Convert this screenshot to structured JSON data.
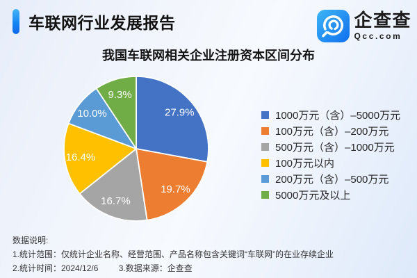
{
  "header": {
    "title": "车联网行业发展报告"
  },
  "brand": {
    "name": "企查查",
    "domain": "Qcc.com",
    "logo_icon": "qcc-magnifier-c-icon",
    "logo_gradient_top": "#3db5f7",
    "logo_gradient_bottom": "#0f6fee"
  },
  "chart_data": {
    "type": "pie",
    "title": "我国车联网相关企业注册资本区间分布",
    "unit": "%",
    "start_angle_deg": 0,
    "direction": "clockwise",
    "legend_position": "right",
    "label_format": "one-decimal-percent",
    "slices": [
      {
        "label": "1000万元（含）–5000万元",
        "value": 27.9,
        "color": "#4472c4"
      },
      {
        "label": "100万元（含）–200万元",
        "value": 19.7,
        "color": "#ed7d31"
      },
      {
        "label": "500万元（含）–1000万元",
        "value": 16.7,
        "color": "#a5a5a5"
      },
      {
        "label": "100万元以内",
        "value": 16.4,
        "color": "#ffc000"
      },
      {
        "label": "200万元（含）–500万元",
        "value": 10.0,
        "color": "#5b9bd5"
      },
      {
        "label": "5000万元及以上",
        "value": 9.3,
        "color": "#70ad47"
      }
    ]
  },
  "footer": {
    "heading": "数据说明:",
    "scope": "1.统计范围：仅统计企业名称、经营范围、产品名称包含关键词“车联网”的在业存续企业",
    "time": "2.统计时间：2024/12/6",
    "source": "3.数据来源：企查查"
  },
  "accent_color": "#1586f2"
}
